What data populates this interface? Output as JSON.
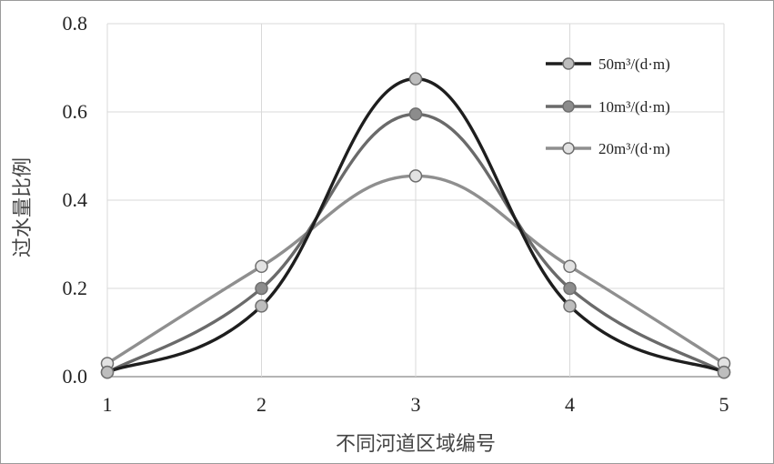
{
  "chart_data": {
    "type": "line",
    "smooth": true,
    "xlabel": "不同河道区域编号",
    "ylabel": "过水量比例",
    "x": [
      1,
      2,
      3,
      4,
      5
    ],
    "xticks": [
      "1",
      "2",
      "3",
      "4",
      "5"
    ],
    "yticks": [
      "0.0",
      "0.2",
      "0.4",
      "0.6",
      "0.8"
    ],
    "xlim": [
      1,
      5
    ],
    "ylim": [
      0,
      0.8
    ],
    "grid": true,
    "legend_position": "top-right",
    "series": [
      {
        "name": "50m³/(d·m)",
        "values": [
          0.01,
          0.16,
          0.675,
          0.16,
          0.01
        ],
        "color": "#1e1e1e",
        "marker_fill": "#bdbdbd"
      },
      {
        "name": "10m³/(d·m)",
        "values": [
          0.01,
          0.2,
          0.595,
          0.2,
          0.01
        ],
        "color": "#6a6a6a",
        "marker_fill": "#8c8c8c"
      },
      {
        "name": "20m³/(d·m)",
        "values": [
          0.03,
          0.25,
          0.455,
          0.25,
          0.03
        ],
        "color": "#8f8f8f",
        "marker_fill": "#e2e2e2"
      }
    ]
  }
}
